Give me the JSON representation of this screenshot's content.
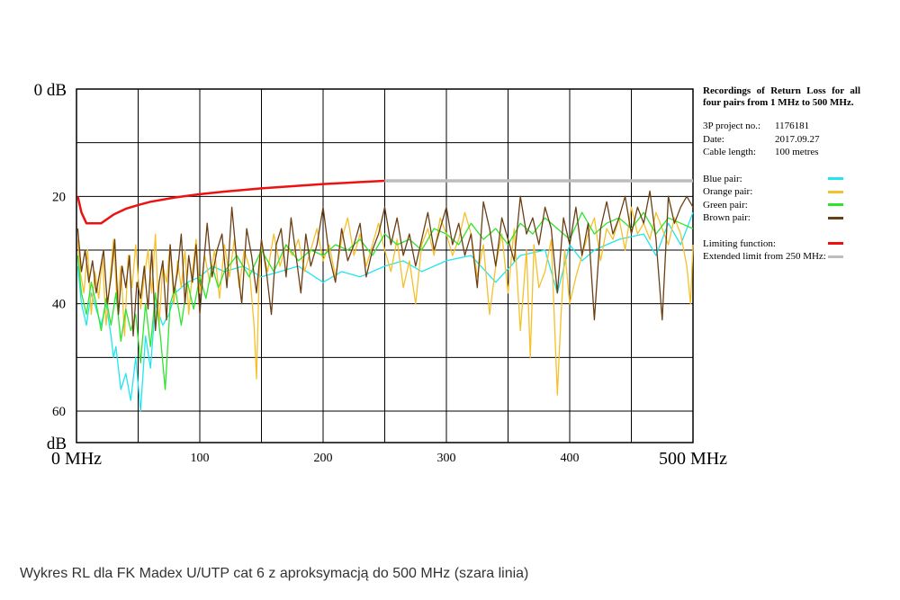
{
  "chart_data": {
    "type": "line",
    "title": "Recordings of Return Loss for all four pairs from 1 MHz to 500 MHz.",
    "xlabel": "MHz",
    "ylabel": "dB",
    "xlim": [
      0,
      500
    ],
    "ylim": [
      0,
      66
    ],
    "y_inverted": true,
    "grid": true,
    "x_ticks": [
      {
        "value": 0,
        "label": "0 MHz",
        "big": true
      },
      {
        "value": 100,
        "label": "100"
      },
      {
        "value": 200,
        "label": "200"
      },
      {
        "value": 300,
        "label": "300"
      },
      {
        "value": 400,
        "label": "400"
      },
      {
        "value": 500,
        "label": "500 MHz",
        "big": true
      }
    ],
    "y_ticks": [
      {
        "value": 0,
        "label": "0 dB",
        "big": true
      },
      {
        "value": 20,
        "label": "20"
      },
      {
        "value": 40,
        "label": "40"
      },
      {
        "value": 60,
        "label": "60"
      },
      {
        "value": 65,
        "label": "dB",
        "big": true
      }
    ],
    "series": [
      {
        "name": "Blue pair:",
        "color": "#22e5f0",
        "x": [
          1,
          4,
          8,
          12,
          16,
          20,
          24,
          28,
          30,
          32,
          36,
          40,
          44,
          48,
          52,
          56,
          60,
          64,
          70,
          75,
          80,
          90,
          100,
          110,
          120,
          135,
          150,
          165,
          180,
          200,
          215,
          230,
          250,
          265,
          280,
          300,
          320,
          340,
          360,
          380,
          390,
          400,
          410,
          420,
          440,
          460,
          470,
          480,
          490,
          500
        ],
        "y": [
          33,
          40,
          44,
          38,
          41,
          44,
          40,
          46,
          50,
          48,
          56,
          53,
          58,
          50,
          60,
          46,
          52,
          40,
          44,
          42,
          38,
          36,
          35,
          33,
          34,
          33,
          35,
          34,
          33,
          36,
          34,
          35,
          33,
          32,
          34,
          32,
          31,
          36,
          31,
          30,
          38,
          29,
          32,
          30,
          28,
          27,
          31,
          25,
          29,
          23
        ]
      },
      {
        "name": "Orange pair:",
        "color": "#f5c02a",
        "x": [
          1,
          3,
          6,
          9,
          12,
          15,
          18,
          21,
          24,
          27,
          30,
          33,
          36,
          39,
          42,
          45,
          48,
          52,
          55,
          58,
          61,
          64,
          67,
          70,
          73,
          76,
          79,
          82,
          85,
          88,
          91,
          94,
          97,
          100,
          104,
          108,
          112,
          116,
          120,
          124,
          128,
          132,
          136,
          140,
          144,
          146,
          148,
          150,
          155,
          160,
          165,
          170,
          175,
          180,
          185,
          190,
          195,
          200,
          205,
          210,
          215,
          220,
          225,
          230,
          235,
          240,
          245,
          250,
          255,
          260,
          265,
          270,
          275,
          280,
          285,
          290,
          295,
          300,
          305,
          310,
          315,
          320,
          325,
          330,
          335,
          340,
          345,
          350,
          355,
          360,
          365,
          368,
          371,
          375,
          380,
          385,
          390,
          393,
          396,
          400,
          405,
          410,
          415,
          420,
          425,
          430,
          435,
          440,
          445,
          450,
          455,
          460,
          465,
          470,
          475,
          480,
          485,
          490,
          495,
          498,
          500
        ],
        "y": [
          28,
          34,
          38,
          30,
          42,
          34,
          39,
          31,
          44,
          36,
          28,
          40,
          33,
          46,
          31,
          37,
          29,
          41,
          35,
          30,
          38,
          27,
          44,
          33,
          36,
          29,
          40,
          32,
          37,
          30,
          42,
          34,
          28,
          38,
          31,
          36,
          30,
          39,
          29,
          35,
          28,
          37,
          30,
          33,
          44,
          54,
          36,
          29,
          34,
          27,
          33,
          29,
          31,
          28,
          34,
          30,
          26,
          32,
          29,
          35,
          28,
          24,
          31,
          27,
          33,
          29,
          25,
          30,
          34,
          28,
          37,
          32,
          40,
          29,
          26,
          31,
          24,
          27,
          31,
          28,
          23,
          27,
          35,
          29,
          42,
          33,
          27,
          38,
          26,
          45,
          30,
          50,
          29,
          37,
          34,
          28,
          57,
          42,
          30,
          40,
          35,
          31,
          27,
          24,
          32,
          26,
          28,
          24,
          30,
          22,
          27,
          25,
          28,
          23,
          26,
          29,
          24,
          27,
          33,
          40,
          29
        ]
      },
      {
        "name": "Green pair:",
        "color": "#2ee52e",
        "x": [
          1,
          4,
          8,
          12,
          16,
          20,
          24,
          28,
          32,
          36,
          40,
          44,
          48,
          52,
          56,
          60,
          64,
          68,
          72,
          76,
          80,
          85,
          90,
          95,
          100,
          105,
          110,
          115,
          120,
          130,
          140,
          150,
          160,
          170,
          180,
          190,
          200,
          210,
          220,
          230,
          240,
          250,
          260,
          270,
          280,
          290,
          300,
          310,
          320,
          330,
          340,
          350,
          360,
          370,
          380,
          390,
          400,
          410,
          420,
          430,
          440,
          450,
          460,
          470,
          480,
          490,
          500
        ],
        "y": [
          31,
          38,
          42,
          36,
          40,
          45,
          39,
          44,
          38,
          47,
          41,
          45,
          42,
          51,
          40,
          48,
          38,
          46,
          56,
          40,
          37,
          44,
          36,
          41,
          35,
          39,
          33,
          37,
          34,
          31,
          35,
          30,
          34,
          29,
          32,
          30,
          31,
          29,
          30,
          28,
          31,
          27,
          29,
          28,
          30,
          26,
          27,
          29,
          25,
          28,
          26,
          29,
          25,
          27,
          24,
          26,
          28,
          23,
          27,
          25,
          24,
          26,
          23,
          27,
          24,
          25,
          26
        ]
      },
      {
        "name": "Brown pair:",
        "color": "#6b3f14",
        "x": [
          1,
          4,
          7,
          10,
          13,
          16,
          19,
          22,
          25,
          28,
          31,
          34,
          37,
          40,
          43,
          46,
          49,
          52,
          55,
          58,
          61,
          64,
          67,
          70,
          73,
          76,
          79,
          82,
          85,
          88,
          91,
          94,
          97,
          100,
          103,
          106,
          110,
          114,
          118,
          122,
          126,
          130,
          134,
          138,
          142,
          146,
          150,
          154,
          158,
          162,
          166,
          170,
          174,
          178,
          182,
          186,
          190,
          195,
          200,
          205,
          210,
          215,
          220,
          225,
          230,
          235,
          240,
          245,
          250,
          255,
          260,
          265,
          270,
          275,
          280,
          285,
          290,
          295,
          300,
          305,
          310,
          315,
          320,
          325,
          330,
          335,
          340,
          345,
          350,
          355,
          360,
          365,
          370,
          375,
          380,
          385,
          390,
          395,
          400,
          405,
          410,
          415,
          420,
          425,
          430,
          435,
          440,
          445,
          450,
          455,
          460,
          465,
          470,
          475,
          480,
          485,
          490,
          495,
          500
        ],
        "y": [
          26,
          34,
          30,
          36,
          32,
          38,
          34,
          30,
          40,
          35,
          28,
          42,
          33,
          37,
          31,
          46,
          36,
          39,
          33,
          41,
          30,
          45,
          36,
          32,
          43,
          29,
          38,
          34,
          27,
          40,
          31,
          36,
          29,
          42,
          33,
          25,
          35,
          30,
          27,
          37,
          22,
          32,
          40,
          26,
          31,
          38,
          28,
          34,
          42,
          29,
          26,
          35,
          24,
          31,
          38,
          27,
          33,
          29,
          22,
          31,
          36,
          26,
          32,
          29,
          25,
          35,
          30,
          27,
          22,
          29,
          24,
          31,
          27,
          33,
          28,
          23,
          30,
          26,
          22,
          29,
          25,
          31,
          27,
          37,
          21,
          26,
          33,
          24,
          28,
          32,
          20,
          27,
          24,
          29,
          22,
          26,
          38,
          24,
          29,
          22,
          31,
          25,
          43,
          26,
          21,
          27,
          24,
          20,
          27,
          22,
          25,
          19,
          28,
          43,
          20,
          25,
          22,
          20,
          22
        ]
      },
      {
        "name": "Limiting function:",
        "color": "#ee1111",
        "x": [
          1,
          4,
          8,
          12,
          16,
          20,
          30,
          40,
          50,
          60,
          80,
          100,
          120,
          150,
          175,
          200,
          225,
          250
        ],
        "y": [
          20,
          23,
          25,
          25,
          25,
          25,
          23.4,
          22.3,
          21.6,
          21.0,
          20.2,
          19.6,
          19.1,
          18.5,
          18.1,
          17.7,
          17.4,
          17.1
        ]
      },
      {
        "name": "Extended limit from 250 MHz:",
        "color": "#bdbdbd",
        "x": [
          250,
          500
        ],
        "y": [
          17.1,
          17.1
        ]
      }
    ]
  },
  "panel": {
    "title": "Recordings of Return Loss for all four pairs from 1 MHz to 500 MHz.",
    "project_label": "3P project no.:",
    "project_value": "1176181",
    "date_label": "Date:",
    "date_value": "2017.09.27",
    "cable_label": "Cable length:",
    "cable_value": "100 metres"
  },
  "caption": "Wykres RL dla FK Madex U/UTP cat 6 z aproksymacją do 500 MHz (szara linia)"
}
